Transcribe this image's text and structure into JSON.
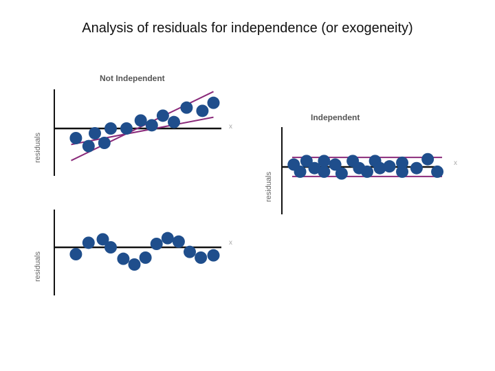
{
  "title": "Analysis of residuals for independence (or exogeneity)",
  "colors": {
    "dot": "#1f4e8c",
    "band": "#8a2a7a",
    "axis": "#111111"
  },
  "chart_data": [
    {
      "type": "scatter",
      "title": "Not Independent",
      "ylabel": "residuals",
      "xlabel": "x",
      "xlim": [
        0,
        10
      ],
      "ylim": [
        -3,
        3
      ],
      "band_lines": [
        {
          "x": [
            0.5,
            9.5
          ],
          "y": [
            -2.0,
            2.3
          ]
        },
        {
          "x": [
            0.5,
            9.5
          ],
          "y": [
            -1.0,
            0.7
          ]
        }
      ],
      "points": [
        {
          "x": 0.8,
          "y": -0.6
        },
        {
          "x": 1.6,
          "y": -1.1
        },
        {
          "x": 2.0,
          "y": -0.3
        },
        {
          "x": 2.6,
          "y": -0.9
        },
        {
          "x": 3.0,
          "y": 0.0
        },
        {
          "x": 4.0,
          "y": 0.0
        },
        {
          "x": 4.9,
          "y": 0.5
        },
        {
          "x": 5.6,
          "y": 0.2
        },
        {
          "x": 6.3,
          "y": 0.8
        },
        {
          "x": 7.0,
          "y": 0.4
        },
        {
          "x": 7.8,
          "y": 1.3
        },
        {
          "x": 8.8,
          "y": 1.1
        },
        {
          "x": 9.5,
          "y": 1.6
        }
      ]
    },
    {
      "type": "scatter",
      "title": "",
      "ylabel": "residuals",
      "xlabel": "x",
      "xlim": [
        0,
        10
      ],
      "ylim": [
        -3,
        3
      ],
      "points": [
        {
          "x": 0.8,
          "y": -0.6
        },
        {
          "x": 1.6,
          "y": 0.4
        },
        {
          "x": 2.5,
          "y": 0.7
        },
        {
          "x": 3.0,
          "y": 0.0
        },
        {
          "x": 3.8,
          "y": -1.0
        },
        {
          "x": 4.5,
          "y": -1.5
        },
        {
          "x": 5.2,
          "y": -0.9
        },
        {
          "x": 5.9,
          "y": 0.3
        },
        {
          "x": 6.6,
          "y": 0.8
        },
        {
          "x": 7.3,
          "y": 0.5
        },
        {
          "x": 8.0,
          "y": -0.4
        },
        {
          "x": 8.7,
          "y": -0.9
        },
        {
          "x": 9.5,
          "y": -0.7
        }
      ]
    },
    {
      "type": "scatter",
      "title": "Independent",
      "ylabel": "residuals",
      "xlabel": "x",
      "xlim": [
        0,
        10
      ],
      "ylim": [
        -3,
        3
      ],
      "band_lines": [
        {
          "x": [
            0.3,
            9.7
          ],
          "y": [
            1.6,
            1.6
          ]
        },
        {
          "x": [
            0.3,
            9.7
          ],
          "y": [
            -1.6,
            -1.6
          ]
        }
      ],
      "points": [
        {
          "x": 0.4,
          "y": 0.4
        },
        {
          "x": 0.8,
          "y": -0.8
        },
        {
          "x": 1.2,
          "y": 1.0
        },
        {
          "x": 1.7,
          "y": -0.2
        },
        {
          "x": 2.3,
          "y": -0.8
        },
        {
          "x": 2.3,
          "y": 1.0
        },
        {
          "x": 3.0,
          "y": 0.4
        },
        {
          "x": 3.4,
          "y": -1.1
        },
        {
          "x": 4.1,
          "y": 1.0
        },
        {
          "x": 4.5,
          "y": -0.2
        },
        {
          "x": 5.0,
          "y": -0.8
        },
        {
          "x": 5.5,
          "y": 1.0
        },
        {
          "x": 5.8,
          "y": -0.2
        },
        {
          "x": 6.4,
          "y": 0.1
        },
        {
          "x": 7.2,
          "y": 0.7
        },
        {
          "x": 7.2,
          "y": -0.8
        },
        {
          "x": 8.1,
          "y": -0.2
        },
        {
          "x": 8.8,
          "y": 1.3
        },
        {
          "x": 9.4,
          "y": -0.8
        }
      ]
    }
  ]
}
